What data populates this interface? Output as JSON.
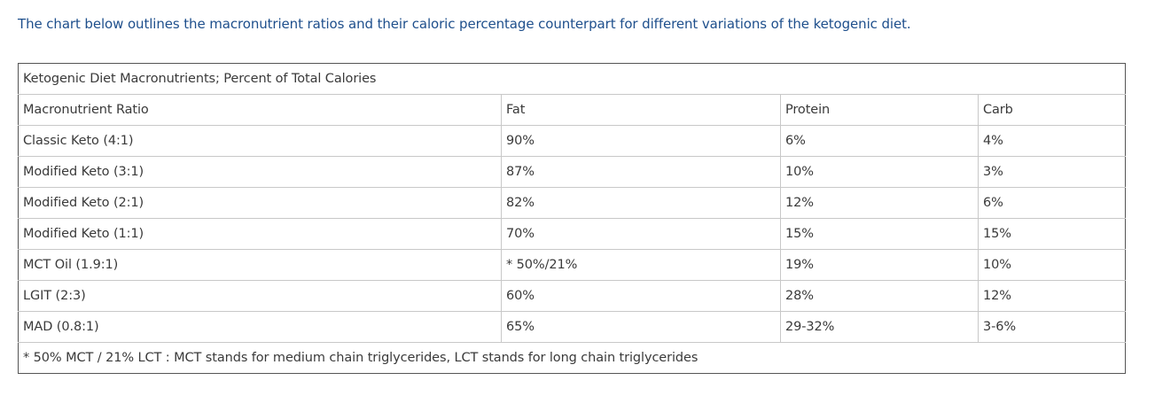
{
  "intro": "The chart below outlines the macronutrient ratios and their caloric percentage counterpart for different variations of the ketogenic diet.",
  "table": {
    "caption": "Ketogenic Diet Macronutrients; Percent of Total Calories",
    "headers": [
      "Macronutrient Ratio",
      "Fat",
      "Protein",
      "Carb"
    ],
    "rows": [
      [
        "Classic Keto (4:1)",
        "90%",
        "6%",
        "4%"
      ],
      [
        "Modified Keto (3:1)",
        "87%",
        "10%",
        "3%"
      ],
      [
        "Modified Keto (2:1)",
        "82%",
        "12%",
        "6%"
      ],
      [
        "Modified Keto (1:1)",
        "70%",
        "15%",
        "15%"
      ],
      [
        "MCT Oil (1.9:1)",
        "* 50%/21%",
        "19%",
        "10%"
      ],
      [
        "LGIT (2:3)",
        "60%",
        "28%",
        "12%"
      ],
      [
        "MAD (0.8:1)",
        "65%",
        "29-32%",
        "3-6%"
      ]
    ],
    "footnote": "* 50% MCT / 21% LCT : MCT stands for medium chain triglycerides, LCT stands for long chain triglycerides"
  }
}
